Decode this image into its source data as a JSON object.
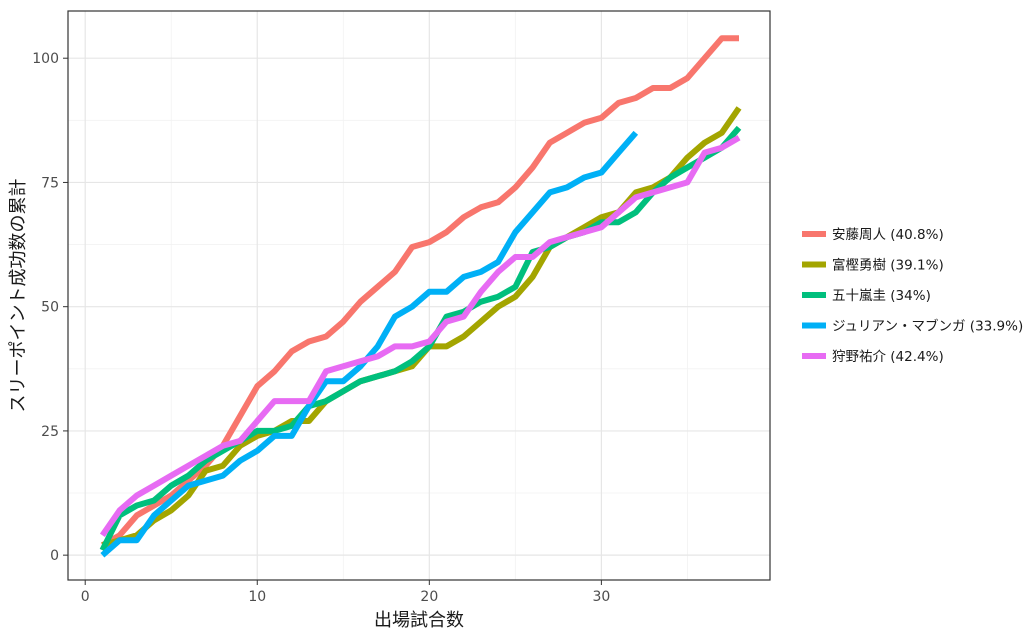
{
  "chart_data": {
    "type": "line",
    "title": "",
    "xlabel": "出場試合数",
    "ylabel": "スリーポイント成功数の累計",
    "xlim": [
      -1,
      39.8
    ],
    "ylim": [
      -5,
      109.5
    ],
    "x_ticks": [
      0,
      10,
      20,
      30
    ],
    "y_ticks": [
      0,
      25,
      50,
      75,
      100
    ],
    "x_minor": [
      5,
      15,
      25,
      35
    ],
    "y_minor": [
      12.5,
      37.5,
      62.5,
      87.5
    ],
    "grid": true,
    "legend_position": "right",
    "series": [
      {
        "name": "安藤周人 (40.8%)",
        "color": "#F8766D",
        "x": [
          1,
          2,
          3,
          4,
          5,
          6,
          7,
          8,
          9,
          10,
          11,
          12,
          13,
          14,
          15,
          16,
          17,
          18,
          19,
          20,
          21,
          22,
          23,
          24,
          25,
          26,
          27,
          28,
          29,
          30,
          31,
          32,
          33,
          34,
          35,
          36,
          37,
          38
        ],
        "values": [
          2,
          4,
          8,
          10,
          12,
          15,
          18,
          22,
          28,
          34,
          37,
          41,
          43,
          44,
          47,
          51,
          54,
          57,
          62,
          63,
          65,
          68,
          70,
          71,
          74,
          78,
          83,
          85,
          87,
          88,
          91,
          92,
          94,
          94,
          96,
          100,
          104,
          104
        ]
      },
      {
        "name": "富樫勇樹 (39.1%)",
        "color": "#A3A500",
        "x": [
          1,
          2,
          3,
          4,
          5,
          6,
          7,
          8,
          9,
          10,
          11,
          12,
          13,
          14,
          15,
          16,
          17,
          18,
          19,
          20,
          21,
          22,
          23,
          24,
          25,
          26,
          27,
          28,
          29,
          30,
          31,
          32,
          33,
          34,
          35,
          36,
          37,
          38
        ],
        "values": [
          2,
          3,
          4,
          7,
          9,
          12,
          17,
          18,
          22,
          24,
          25,
          27,
          27,
          31,
          33,
          35,
          36,
          37,
          38,
          42,
          42,
          44,
          47,
          50,
          52,
          56,
          62,
          64,
          66,
          68,
          69,
          73,
          74,
          76,
          80,
          83,
          85,
          90
        ]
      },
      {
        "name": "五十嵐圭 (34%)",
        "color": "#00BF7D",
        "x": [
          1,
          2,
          3,
          4,
          5,
          6,
          7,
          8,
          9,
          10,
          11,
          12,
          13,
          14,
          15,
          16,
          17,
          18,
          19,
          20,
          21,
          22,
          23,
          24,
          25,
          26,
          27,
          28,
          29,
          30,
          31,
          32,
          33,
          34,
          35,
          36,
          37,
          38
        ],
        "values": [
          1,
          8,
          10,
          11,
          14,
          16,
          19,
          21,
          23,
          25,
          25,
          26,
          30,
          31,
          33,
          35,
          36,
          37,
          39,
          42,
          48,
          49,
          51,
          52,
          54,
          61,
          62,
          64,
          65,
          67,
          67,
          69,
          73,
          76,
          78,
          80,
          82,
          86
        ]
      },
      {
        "name": "ジュリアン・マブンガ (33.9%)",
        "color": "#00B0F6",
        "x": [
          1,
          2,
          3,
          4,
          5,
          6,
          7,
          8,
          9,
          10,
          11,
          12,
          13,
          14,
          15,
          16,
          17,
          18,
          19,
          20,
          21,
          22,
          23,
          24,
          25,
          26,
          27,
          28,
          29,
          30,
          31,
          32
        ],
        "values": [
          0,
          3,
          3,
          8,
          11,
          14,
          15,
          16,
          19,
          21,
          24,
          24,
          30,
          35,
          35,
          38,
          42,
          48,
          50,
          53,
          53,
          56,
          57,
          59,
          65,
          69,
          73,
          74,
          76,
          77,
          81,
          85
        ]
      },
      {
        "name": "狩野祐介 (42.4%)",
        "color": "#E76BF3",
        "x": [
          1,
          2,
          3,
          4,
          5,
          6,
          7,
          8,
          9,
          10,
          11,
          12,
          13,
          14,
          15,
          16,
          17,
          18,
          19,
          20,
          21,
          22,
          23,
          24,
          25,
          26,
          27,
          28,
          29,
          30,
          31,
          32,
          33,
          34,
          35,
          36,
          37,
          38
        ],
        "values": [
          4,
          9,
          12,
          14,
          16,
          18,
          20,
          22,
          23,
          27,
          31,
          31,
          31,
          37,
          38,
          39,
          40,
          42,
          42,
          43,
          47,
          48,
          53,
          57,
          60,
          60,
          63,
          64,
          65,
          66,
          69,
          72,
          73,
          74,
          75,
          81,
          82,
          84
        ]
      }
    ]
  }
}
